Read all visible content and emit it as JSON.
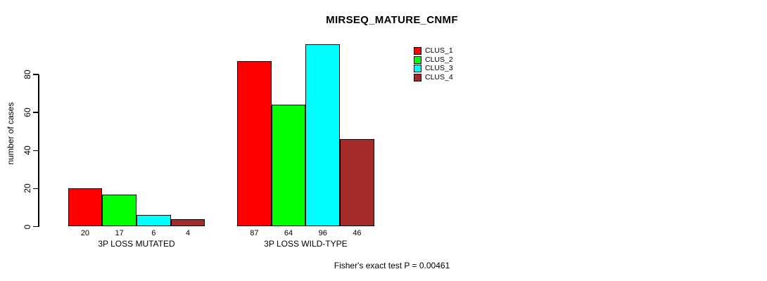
{
  "chart_data": {
    "type": "bar",
    "title": "MIRSEQ_MATURE_CNMF",
    "ylabel": "number of cases",
    "xlabel": "",
    "categories": [
      "3P LOSS MUTATED",
      "3P LOSS WILD-TYPE"
    ],
    "series": [
      {
        "name": "CLUS_1",
        "color": "#FF0000",
        "values": [
          20,
          87
        ]
      },
      {
        "name": "CLUS_2",
        "color": "#00FF00",
        "values": [
          17,
          64
        ]
      },
      {
        "name": "CLUS_3",
        "color": "#00FFFF",
        "values": [
          6,
          96
        ]
      },
      {
        "name": "CLUS_4",
        "color": "#A52A2A",
        "values": [
          4,
          46
        ]
      }
    ],
    "yticks": [
      0,
      20,
      40,
      60,
      80
    ],
    "ylim": [
      0,
      96
    ],
    "bar_value_labels": true,
    "grid": false,
    "legend_position": "top-right",
    "annotation": "Fisher's exact test P = 0.00461"
  },
  "colors": {
    "background": "#FFFFFF",
    "axis": "#000000",
    "text": "#000000"
  }
}
